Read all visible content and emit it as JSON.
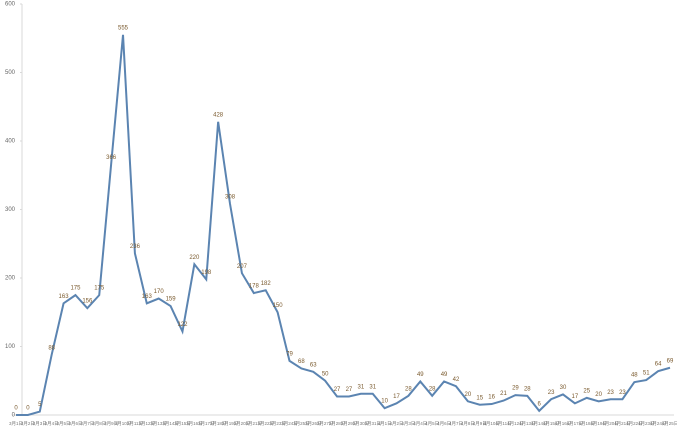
{
  "chart_data": {
    "type": "line",
    "categories": [
      "3月1日",
      "3月2日",
      "3月3日",
      "3月4日",
      "3月5日",
      "3月6日",
      "3月7日",
      "3月8日",
      "3月9日",
      "3月10日",
      "3月11日",
      "3月12日",
      "3月13日",
      "3月14日",
      "3月15日",
      "3月16日",
      "3月17日",
      "3月18日",
      "3月19日",
      "3月20日",
      "3月21日",
      "3月22日",
      "3月23日",
      "3月24日",
      "3月25日",
      "3月26日",
      "3月27日",
      "3月28日",
      "3月29日",
      "3月30日",
      "3月31日",
      "4月1日",
      "4月2日",
      "4月3日",
      "4月4日",
      "4月5日",
      "4月6日",
      "4月7日",
      "4月8日",
      "4月9日",
      "4月10日",
      "4月11日",
      "4月12日",
      "4月13日",
      "4月14日",
      "4月15日",
      "4月16日",
      "4月17日",
      "4月18日",
      "4月19日",
      "4月20日",
      "4月21日",
      "4月22日",
      "4月23日",
      "4月24日",
      "4月25日"
    ],
    "series": [
      {
        "color": "#5b84b1",
        "values": [
          0,
          0,
          5,
          88,
          163,
          175,
          156,
          175,
          366,
          555,
          236,
          163,
          170,
          159,
          122,
          220,
          198,
          428,
          308,
          207,
          178,
          182,
          150,
          79,
          68,
          63,
          50,
          27,
          27,
          31,
          31,
          10,
          17,
          28,
          49,
          28,
          49,
          42,
          20,
          15,
          16,
          21,
          29,
          28,
          6,
          23,
          30,
          17,
          25,
          20,
          23,
          23,
          48,
          51,
          64,
          69
        ]
      }
    ],
    "ylim": [
      0,
      600
    ],
    "yticks": [
      0,
      100,
      200,
      300,
      400,
      500,
      600
    ],
    "grid": false
  }
}
